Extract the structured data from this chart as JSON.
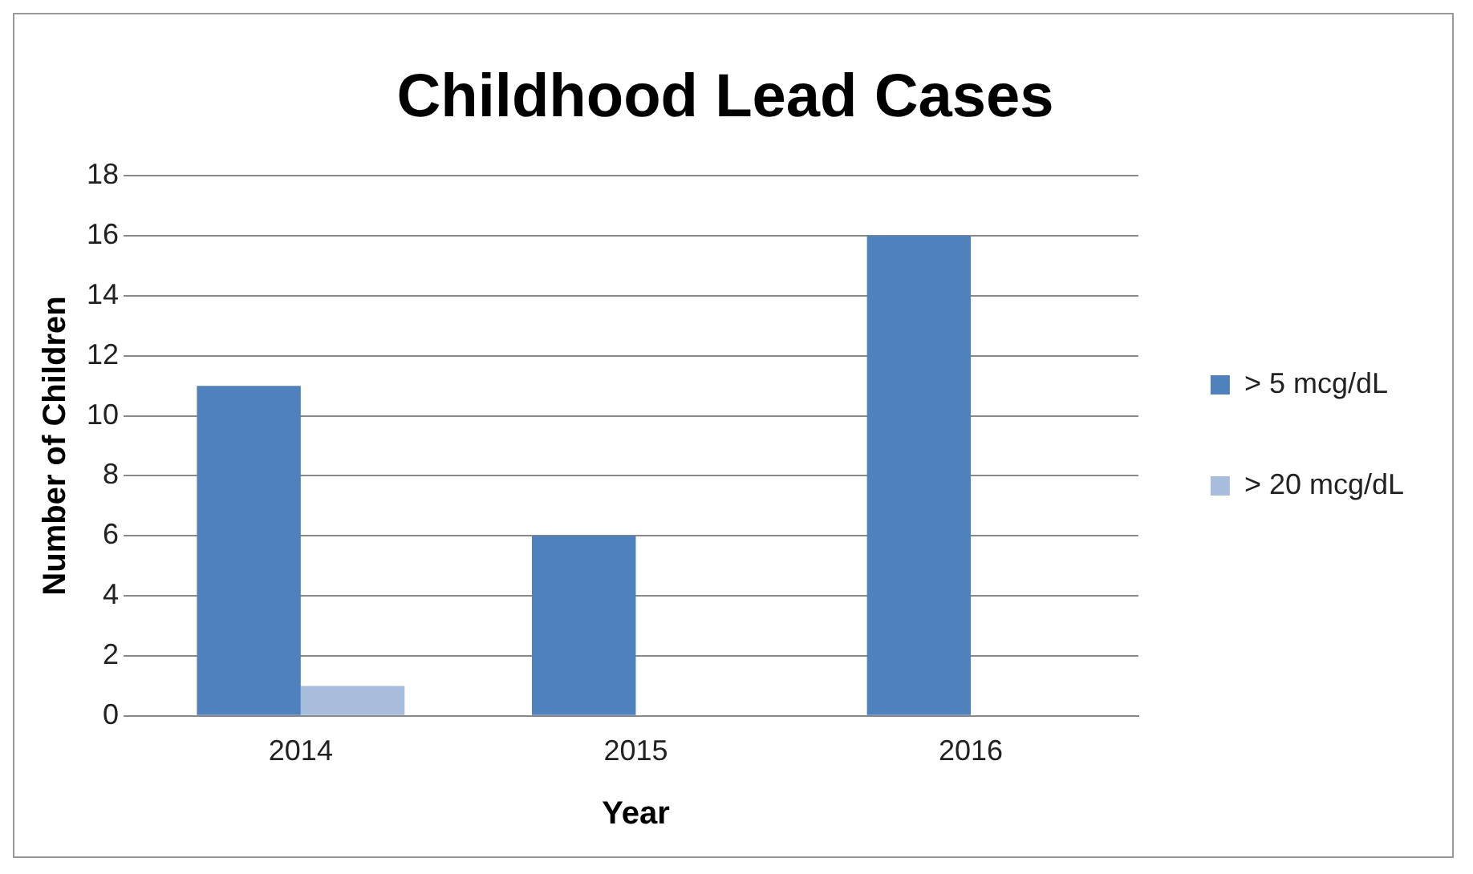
{
  "chart_data": {
    "type": "bar",
    "title": "Childhood Lead Cases",
    "xlabel": "Year",
    "ylabel": "Number of Children",
    "categories": [
      "2014",
      "2015",
      "2016"
    ],
    "series": [
      {
        "name": "> 5 mcg/dL",
        "color": "#4f81bd",
        "values": [
          11,
          6,
          16
        ]
      },
      {
        "name": "> 20 mcg/dL",
        "color": "#a7bddb",
        "values": [
          1,
          0,
          0
        ]
      }
    ],
    "ylim": [
      0,
      18
    ],
    "yticks": [
      0,
      2,
      4,
      6,
      8,
      10,
      12,
      14,
      16,
      18
    ],
    "grid": "y",
    "legend": "right"
  }
}
